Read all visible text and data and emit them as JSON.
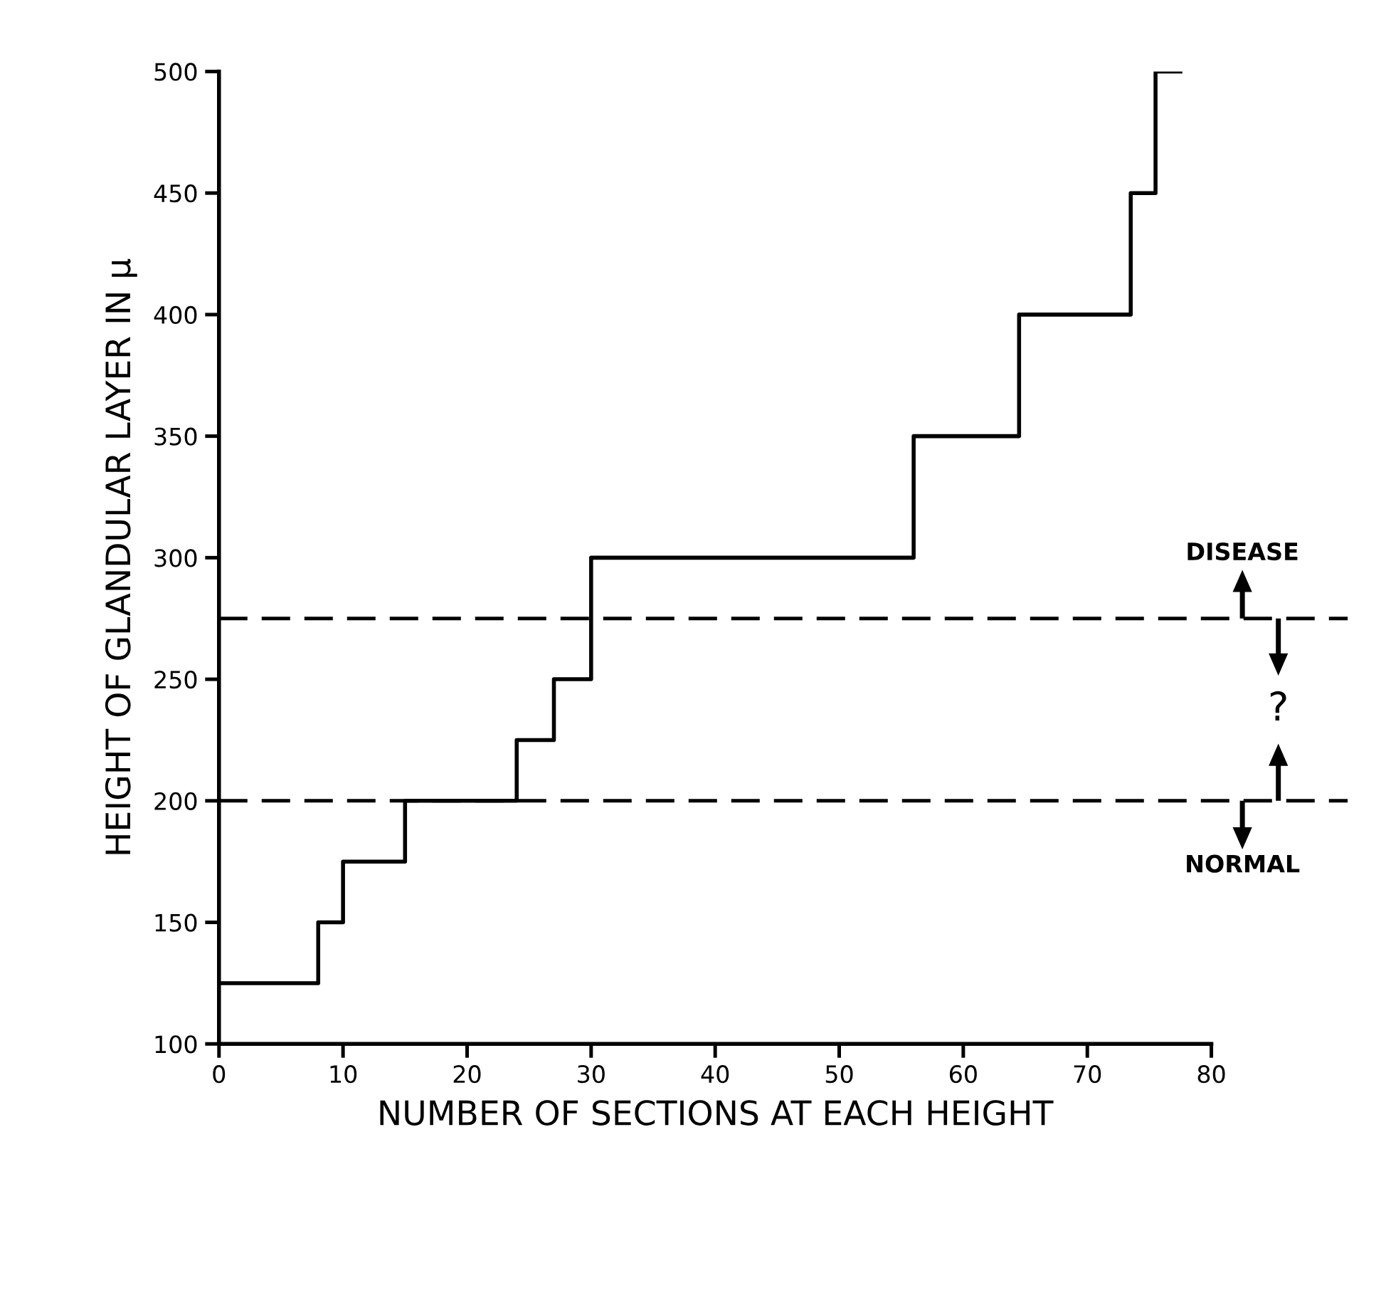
{
  "chart_data": {
    "type": "step",
    "xlabel": "NUMBER OF SECTIONS AT EACH HEIGHT",
    "ylabel": "HEIGHT OF GLANDULAR LAYER IN μ",
    "x": [
      0,
      8,
      10,
      15,
      24,
      27,
      30,
      56,
      64.5,
      73.5,
      75.5,
      77.5
    ],
    "series": [
      {
        "color": "#000000",
        "values": [
          125,
          150,
          175,
          200,
          225,
          250,
          300,
          350,
          400,
          450,
          500,
          500
        ]
      }
    ],
    "xlim": [
      0,
      80
    ],
    "xticks": [
      0,
      10,
      20,
      30,
      40,
      50,
      60,
      70,
      80
    ],
    "ylim": [
      100,
      500
    ],
    "yticks": [
      100,
      150,
      200,
      250,
      300,
      350,
      400,
      450,
      500
    ],
    "ref_lines": [
      {
        "axis": "y",
        "value": 275,
        "label": "DISEASE",
        "line_style": "dashed",
        "color": "#000000"
      },
      {
        "axis": "y",
        "value": 200,
        "label": "NORMAL",
        "line_style": "dashed",
        "color": "#000000"
      }
    ],
    "annotations": [
      "?"
    ],
    "grid": false,
    "line_style": "solid",
    "marker": "none"
  }
}
